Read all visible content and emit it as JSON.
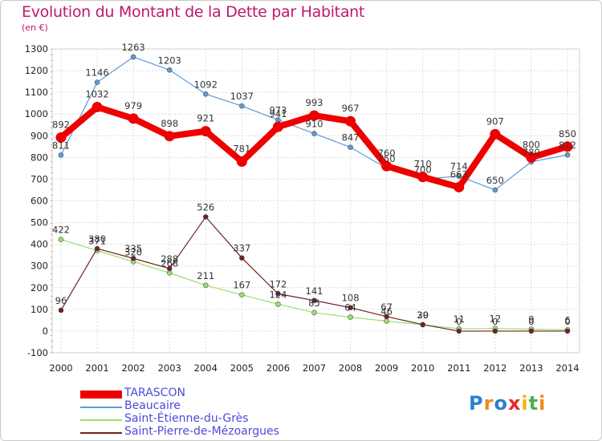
{
  "chart_data": {
    "type": "line",
    "title": "Evolution du Montant de la Dette par Habitant",
    "unit_label": "(en €)",
    "x": [
      "2000",
      "2001",
      "2002",
      "2003",
      "2004",
      "2005",
      "2006",
      "2007",
      "2008",
      "2009",
      "2010",
      "2011",
      "2012",
      "2013",
      "2014"
    ],
    "ylim": [
      -100,
      1300
    ],
    "yticks": [
      -100,
      0,
      100,
      200,
      300,
      400,
      500,
      600,
      700,
      800,
      900,
      1000,
      1100,
      1200,
      1300
    ],
    "grid": true,
    "legend_position": "bottom-left",
    "series": [
      {
        "name": "TARASCON",
        "color": "#ee0000",
        "values": [
          892,
          1032,
          979,
          898,
          921,
          781,
          941,
          993,
          967,
          760,
          710,
          663,
          907,
          800,
          850
        ],
        "labels": [
          "892",
          "1032",
          "979",
          "898",
          "921",
          "781",
          "941",
          "993",
          "967",
          "760",
          "710",
          "663",
          "907",
          "800",
          "850"
        ]
      },
      {
        "name": "Beaucaire",
        "color": "#5c9bd5",
        "values": [
          811,
          1146,
          1263,
          1203,
          1092,
          1037,
          973,
          910,
          847,
          750,
          700,
          714,
          650,
          780,
          812
        ],
        "labels": [
          "811",
          "1146",
          "1263",
          "1203",
          "1092",
          "1037",
          "973",
          "910",
          "847",
          "750",
          "700",
          "714",
          "650",
          "780",
          "812"
        ]
      },
      {
        "name": "Saint-Étienne-du-Grès",
        "color": "#99e070",
        "values": [
          422,
          371,
          320,
          268,
          211,
          167,
          124,
          85,
          64,
          46,
          29,
          11,
          12,
          9,
          6
        ],
        "labels": [
          "422",
          "371",
          "320",
          "268",
          "211",
          "167",
          "124",
          "85",
          "64",
          "46",
          "29",
          "11",
          "12",
          "9",
          "6"
        ]
      },
      {
        "name": "Saint-Pierre-de-Mézoargues",
        "color": "#6e2222",
        "values": [
          96,
          380,
          335,
          288,
          526,
          337,
          172,
          141,
          108,
          67,
          30,
          0,
          0,
          0,
          0
        ],
        "labels": [
          "96",
          "380",
          "335",
          "288",
          "526",
          "337",
          "172",
          "141",
          "108",
          "67",
          "30",
          "0",
          "0",
          "0",
          "0"
        ]
      }
    ]
  },
  "logo": {
    "letters": [
      "P",
      "r",
      "o",
      "x",
      "i",
      "t",
      "i"
    ],
    "colors": [
      "#2d7fd0",
      "#f08a1c",
      "#2d7fd0",
      "#e8262b",
      "#f5b400",
      "#4caf50",
      "#f08a1c"
    ]
  }
}
